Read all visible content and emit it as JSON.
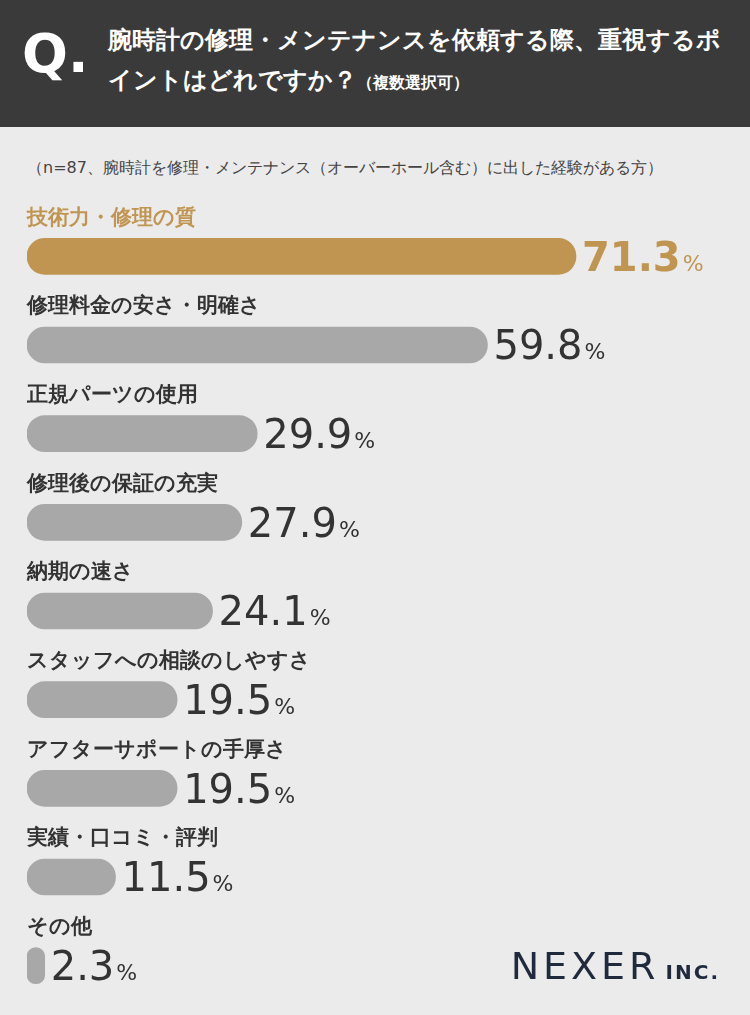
{
  "chart_data": {
    "type": "bar",
    "orientation": "horizontal",
    "title": "腕時計の修理・メンテナンスを依頼する際、重視するポイントはどれですか？",
    "title_note": "（複数選択可）",
    "subtitle": "（n=87、腕時計を修理・メンテナンス（オーバーホール含む）に出した経験がある方）",
    "annotations": {
      "question_mark": "Q.",
      "logo": "NEXER INC."
    },
    "categories": [
      "技術力・修理の質",
      "修理料金の安さ・明確さ",
      "正規パーツの使用",
      "修理後の保証の充実",
      "納期の速さ",
      "スタッフへの相談のしやすさ",
      "アフターサポートの手厚さ",
      "実績・口コミ・評判",
      "その他"
    ],
    "values": [
      71.3,
      59.8,
      29.9,
      27.9,
      24.1,
      19.5,
      19.5,
      11.5,
      2.3
    ],
    "value_labels": [
      "71.3%",
      "59.8%",
      "29.9%",
      "27.9%",
      "24.1%",
      "19.5%",
      "19.5%",
      "11.5%",
      "2.3%"
    ],
    "colors": [
      "#c09552",
      "#a8a8a9",
      "#a8a8a9",
      "#a8a8a9",
      "#a8a8a9",
      "#a8a8a9",
      "#a8a8a9",
      "#a8a8a9",
      "#a8a8a9"
    ],
    "xlim": [
      0,
      90
    ],
    "data_labels": true,
    "tick_labels": false,
    "grid": false
  }
}
